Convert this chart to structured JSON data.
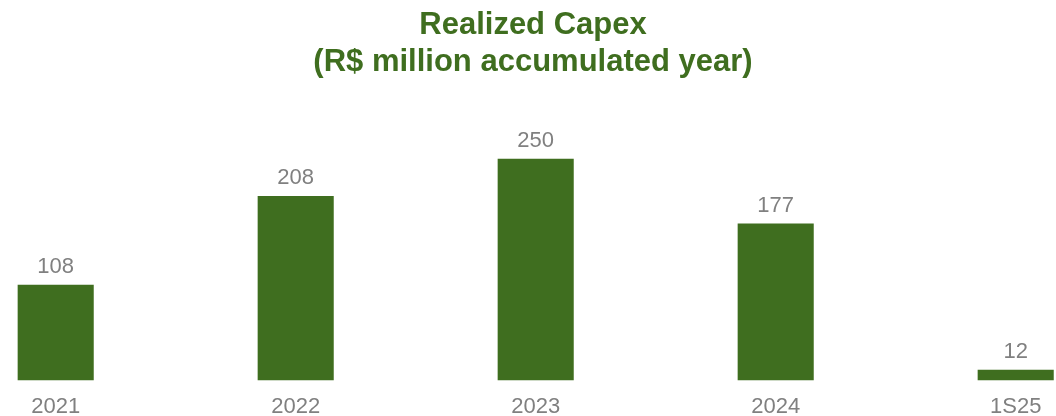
{
  "chart_data": {
    "type": "bar",
    "title": "Realized Capex\n(R$ million accumulated year)",
    "categories": [
      "2021",
      "2022",
      "2023",
      "2024",
      "1S25"
    ],
    "values": [
      108,
      208,
      250,
      177,
      12
    ],
    "color": "#3f6e1f",
    "data_labels": true,
    "grid": false
  }
}
